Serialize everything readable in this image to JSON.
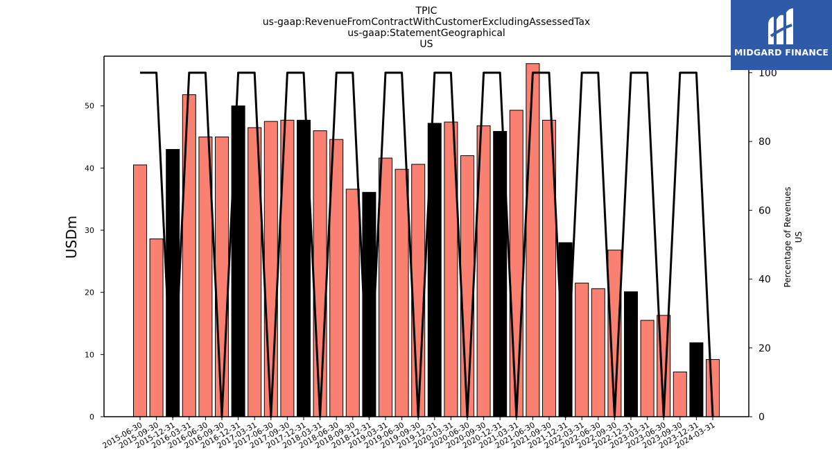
{
  "title_lines": [
    "TPIC",
    "us-gaap:RevenueFromContractWithCustomerExcludingAssessedTax",
    "us-gaap:StatementGeographical",
    "US"
  ],
  "logo": {
    "text": "MIDGARD FINANCE"
  },
  "colors": {
    "bar_default": "#fa8072",
    "bar_highlight": "#000000",
    "line": "#000000",
    "logo_bg": "#2f5aa8"
  },
  "chart_data": {
    "type": "bar",
    "title": "TPIC",
    "subtitle_lines": [
      "us-gaap:RevenueFromContractWithCustomerExcludingAssessedTax",
      "us-gaap:StatementGeographical",
      "US"
    ],
    "ylabel": "USDm",
    "ylabel_right": [
      "Percentage of Revenues",
      "US"
    ],
    "ylim": [
      0,
      58
    ],
    "y_ticks": [
      0,
      10,
      20,
      30,
      40,
      50
    ],
    "ylim_right": [
      0,
      104.8
    ],
    "y_ticks_right": [
      0,
      20,
      40,
      60,
      80,
      100
    ],
    "categories": [
      "2015-06-30",
      "2015-09-30",
      "2015-12-31",
      "2016-03-31",
      "2016-06-30",
      "2016-09-30",
      "2016-12-31",
      "2017-03-31",
      "2017-06-30",
      "2017-09-30",
      "2017-12-31",
      "2018-03-31",
      "2018-06-30",
      "2018-09-30",
      "2018-12-31",
      "2019-03-31",
      "2019-06-30",
      "2019-09-30",
      "2019-12-31",
      "2020-03-31",
      "2020-06-30",
      "2020-09-30",
      "2020-12-31",
      "2021-03-31",
      "2021-06-30",
      "2021-09-30",
      "2021-12-31",
      "2022-03-31",
      "2022-06-30",
      "2022-09-30",
      "2022-12-31",
      "2023-03-31",
      "2023-06-30",
      "2023-09-30",
      "2023-12-31",
      "2024-03-31"
    ],
    "series": [
      {
        "type": "bar",
        "values": [
          40.5,
          28.6,
          43.0,
          51.8,
          45.0,
          45.0,
          50.0,
          46.5,
          47.5,
          47.7,
          47.7,
          46.0,
          44.6,
          36.6,
          36.1,
          41.6,
          39.8,
          40.6,
          47.2,
          47.4,
          42.0,
          46.8,
          45.9,
          49.3,
          56.8,
          47.7,
          28.0,
          21.5,
          20.6,
          26.8,
          20.1,
          15.5,
          16.3,
          7.2,
          11.9,
          9.2
        ],
        "highlight": [
          false,
          false,
          true,
          false,
          false,
          false,
          true,
          false,
          false,
          false,
          true,
          false,
          false,
          false,
          true,
          false,
          false,
          false,
          true,
          false,
          false,
          false,
          true,
          false,
          false,
          false,
          true,
          false,
          false,
          false,
          true,
          false,
          false,
          false,
          true,
          false
        ]
      },
      {
        "type": "line",
        "axis": "right",
        "values": [
          100,
          100,
          null,
          100,
          100,
          null,
          100,
          100,
          null,
          100,
          100,
          null,
          100,
          100,
          null,
          100,
          100,
          null,
          100,
          100,
          null,
          100,
          100,
          null,
          100,
          100,
          null,
          100,
          100,
          null,
          100,
          100,
          null,
          100,
          100,
          null
        ]
      }
    ],
    "grid": false,
    "legend": "none"
  }
}
